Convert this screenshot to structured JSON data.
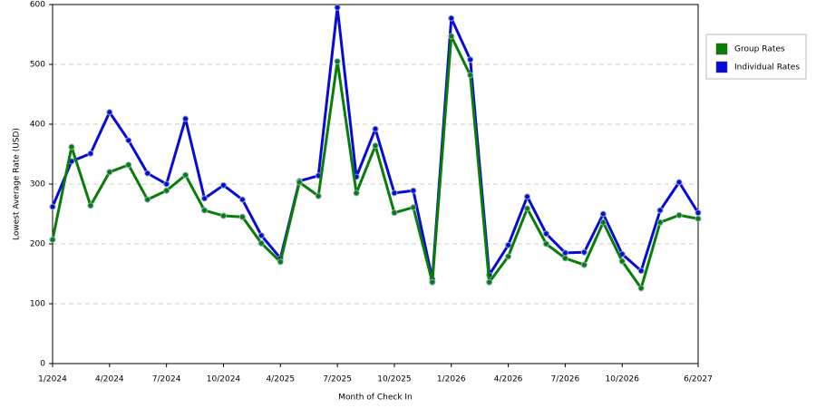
{
  "chart_data": {
    "type": "line",
    "y_label": "Lowest Average Rate (USD)",
    "x_label": "Month of Check In",
    "categories": [
      "1/2024",
      null,
      null,
      "4/2024",
      null,
      null,
      "7/2024",
      null,
      null,
      "10/2024",
      null,
      null,
      "4/2025",
      null,
      null,
      "7/2025",
      null,
      null,
      "10/2025",
      null,
      null,
      "1/2026",
      null,
      null,
      "4/2026",
      null,
      null,
      "7/2026",
      null,
      null,
      "10/2026",
      null,
      null,
      null,
      "6/2027"
    ],
    "series": [
      {
        "name": "Group Rates",
        "color": "#087d08",
        "values": [
          207,
          362,
          264,
          320,
          332,
          274,
          289,
          315,
          256,
          247,
          245,
          201,
          170,
          303,
          280,
          505,
          285,
          364,
          252,
          261,
          136,
          547,
          482,
          136,
          179,
          259,
          200,
          176,
          165,
          236,
          171,
          126,
          236,
          248,
          242
        ]
      },
      {
        "name": "Individual Rates",
        "color": "#0a0ad8",
        "values": [
          262,
          338,
          351,
          420,
          373,
          318,
          300,
          409,
          276,
          298,
          274,
          214,
          176,
          305,
          314,
          595,
          312,
          392,
          285,
          289,
          141,
          577,
          508,
          148,
          198,
          279,
          217,
          185,
          186,
          250,
          183,
          155,
          256,
          303,
          252
        ]
      }
    ],
    "ylim": [
      0,
      600
    ],
    "yticks": [
      0,
      100,
      200,
      300,
      400,
      500,
      600
    ],
    "grid": true
  }
}
